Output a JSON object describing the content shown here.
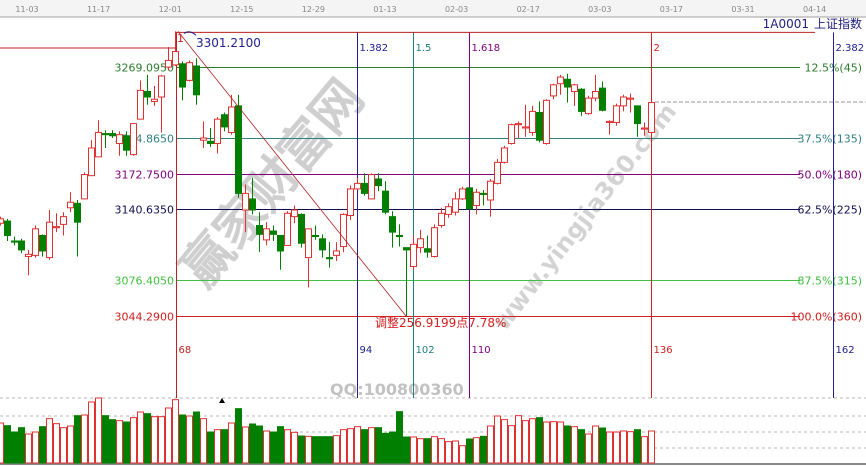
{
  "header": {
    "symbol": "1A0001",
    "index_name": "上证指数"
  },
  "watermark": {
    "site_name": "赢家财富网",
    "url": "www.yingjia360.com",
    "qq": "QQ:100800360"
  },
  "chart_data": {
    "type": "candlestick",
    "x_tick_labels": [
      "11-03",
      "11-17",
      "12-01",
      "12-15",
      "12-29",
      "01-13",
      "02-03",
      "02-17",
      "03-03",
      "03-17",
      "03-31",
      "04-14"
    ],
    "peak": {
      "label": "1",
      "value": "3301.2100"
    },
    "adjustment_note": "调整256.9199点7.78%",
    "fib_levels": [
      {
        "value": "3269.0950",
        "price": 3269.095,
        "right_label": "12.5%(45)",
        "color": "#2e7d2e"
      },
      {
        "value": "3204.8650",
        "price": 3204.865,
        "right_label": "37.5%(135)",
        "color": "#2f8080"
      },
      {
        "value": "3172.7500",
        "price": 3172.75,
        "right_label": "50.0%(180)",
        "color": "#800080"
      },
      {
        "value": "3140.6350",
        "price": 3140.635,
        "right_label": "62.5%(225)",
        "color": "#101050"
      },
      {
        "value": "3076.4050",
        "price": 3076.405,
        "right_label": "87.5%(315)",
        "color": "#40c040"
      },
      {
        "value": "3044.2900",
        "price": 3044.29,
        "right_label": "100.0%(360)",
        "color": "#d02020"
      }
    ],
    "time_zones": [
      {
        "ratio": "",
        "bar": "68",
        "bar_index": 68,
        "color": "#c02020"
      },
      {
        "ratio": "1.382",
        "bar": "94",
        "bar_index": 94,
        "color": "#202090"
      },
      {
        "ratio": "1.5",
        "bar": "102",
        "bar_index": 102,
        "color": "#208080"
      },
      {
        "ratio": "1.618",
        "bar": "110",
        "bar_index": 110,
        "color": "#800080"
      },
      {
        "ratio": "2",
        "bar": "136",
        "bar_index": 136,
        "color": "#d02020"
      },
      {
        "ratio": "2.382",
        "bar": "162",
        "bar_index": 162,
        "color": "#202090"
      }
    ],
    "last_bar_index": 136,
    "colors": {
      "up": "#e03030",
      "down": "#007f00"
    },
    "ohlc": [
      [
        3128,
        3134,
        3126,
        3132
      ],
      [
        3130,
        3132,
        3112,
        3117
      ],
      [
        3112,
        3116,
        3108,
        3111
      ],
      [
        3112,
        3114,
        3101,
        3104
      ],
      [
        3098,
        3104,
        3081,
        3100
      ],
      [
        3099,
        3126,
        3097,
        3123
      ],
      [
        3117,
        3118,
        3098,
        3103
      ],
      [
        3097,
        3140,
        3095,
        3129
      ],
      [
        3124,
        3137,
        3120,
        3125
      ],
      [
        3127,
        3138,
        3117,
        3134
      ],
      [
        3142,
        3156,
        3138,
        3147
      ],
      [
        3146,
        3149,
        3098,
        3129
      ],
      [
        3150,
        3174,
        3150,
        3172
      ],
      [
        3171,
        3203,
        3171,
        3196
      ],
      [
        3188,
        3221,
        3188,
        3210
      ],
      [
        3209,
        3212,
        3196,
        3208
      ],
      [
        3209,
        3212,
        3205,
        3207
      ],
      [
        3200,
        3211,
        3189,
        3208
      ],
      [
        3207,
        3211,
        3189,
        3194
      ],
      [
        3190,
        3218,
        3189,
        3218
      ],
      [
        3222,
        3257,
        3222,
        3248
      ],
      [
        3247,
        3262,
        3235,
        3242
      ],
      [
        3238,
        3252,
        3234,
        3240
      ],
      [
        3242,
        3262,
        3210,
        3261
      ],
      [
        3269,
        3287,
        3266,
        3275
      ],
      [
        3271,
        3301.21,
        3270,
        3283
      ],
      [
        3272,
        3274,
        3239,
        3251
      ],
      [
        3257,
        3275,
        3256,
        3273
      ],
      [
        3270,
        3277,
        3235,
        3244
      ],
      [
        3203,
        3220,
        3196,
        3205
      ],
      [
        3202,
        3214,
        3197,
        3200
      ],
      [
        3200,
        3224,
        3191,
        3222
      ],
      [
        3226,
        3228,
        3211,
        3215
      ],
      [
        3210,
        3244,
        3208,
        3233
      ],
      [
        3234,
        3244,
        3151,
        3155
      ],
      [
        3140,
        3163,
        3120,
        3155
      ],
      [
        3150,
        3169,
        3136,
        3140
      ],
      [
        3126,
        3138,
        3102,
        3118
      ],
      [
        3113,
        3129,
        3108,
        3123
      ],
      [
        3121,
        3126,
        3112,
        3118
      ],
      [
        3117,
        3117,
        3086,
        3103
      ],
      [
        3108,
        3139,
        3108,
        3137
      ],
      [
        3134,
        3144,
        3128,
        3140
      ],
      [
        3136,
        3137,
        3106,
        3110
      ],
      [
        3097,
        3123,
        3070,
        3123
      ],
      [
        3117,
        3126,
        3113,
        3116
      ],
      [
        3114,
        3118,
        3097,
        3104
      ],
      [
        3097,
        3111,
        3088,
        3096
      ],
      [
        3099,
        3111,
        3094,
        3103
      ],
      [
        3107,
        3137,
        3102,
        3136
      ],
      [
        3135,
        3162,
        3131,
        3159
      ],
      [
        3159,
        3169,
        3158,
        3164
      ],
      [
        3164,
        3173,
        3153,
        3155
      ],
      [
        3150,
        3173,
        3150,
        3172
      ],
      [
        3168,
        3173,
        3157,
        3162
      ],
      [
        3157,
        3166,
        3136,
        3138
      ],
      [
        3134,
        3139,
        3106,
        3120
      ],
      [
        3117,
        3127,
        3107,
        3116
      ],
      [
        3106,
        3106,
        3044.29,
        3104
      ],
      [
        3089,
        3117,
        3086,
        3109
      ],
      [
        3106,
        3122,
        3101,
        3114
      ],
      [
        3105,
        3117,
        3097,
        3102
      ],
      [
        3098,
        3127,
        3097,
        3124
      ],
      [
        3126,
        3142,
        3124,
        3137
      ],
      [
        3136,
        3146,
        3133,
        3143
      ],
      [
        3138,
        3156,
        3135,
        3150
      ],
      [
        3150,
        3161,
        3149,
        3159
      ],
      [
        3160,
        3160,
        3141,
        3141
      ],
      [
        3144,
        3159,
        3136,
        3156
      ],
      [
        3155,
        3158,
        3144,
        3154
      ],
      [
        3149,
        3168,
        3134,
        3166
      ],
      [
        3164,
        3186,
        3163,
        3183
      ],
      [
        3183,
        3198,
        3182,
        3196
      ],
      [
        3200,
        3218,
        3199,
        3217
      ],
      [
        3217,
        3220,
        3205,
        3218
      ],
      [
        3214,
        3235,
        3206,
        3215
      ],
      [
        3210,
        3234,
        3207,
        3229
      ],
      [
        3228,
        3238,
        3201,
        3203
      ],
      [
        3200,
        3240,
        3199,
        3239
      ],
      [
        3243,
        3254,
        3240,
        3253
      ],
      [
        3254,
        3262,
        3244,
        3260
      ],
      [
        3258,
        3263,
        3237,
        3251
      ],
      [
        3247,
        3254,
        3234,
        3253
      ],
      [
        3249,
        3250,
        3225,
        3229
      ],
      [
        3227,
        3243,
        3226,
        3241
      ],
      [
        3241,
        3262,
        3238,
        3247
      ],
      [
        3250,
        3256,
        3229,
        3230
      ],
      [
        3219,
        3221,
        3208,
        3220
      ],
      [
        3219,
        3236,
        3216,
        3234
      ],
      [
        3234,
        3244,
        3229,
        3242
      ],
      [
        3240,
        3245,
        3228,
        3241
      ],
      [
        3234,
        3234,
        3206,
        3218
      ],
      [
        3213,
        3219,
        3207,
        3214
      ],
      [
        3210,
        3238,
        3209,
        3237
      ]
    ],
    "volume": [
      120,
      112,
      93,
      106,
      87,
      93,
      109,
      133,
      118,
      106,
      111,
      142,
      144,
      183,
      195,
      142,
      130,
      127,
      123,
      136,
      153,
      148,
      139,
      139,
      165,
      190,
      144,
      141,
      153,
      133,
      93,
      100,
      100,
      120,
      163,
      108,
      117,
      111,
      96,
      93,
      109,
      100,
      92,
      81,
      80,
      79,
      79,
      79,
      82,
      100,
      103,
      109,
      100,
      106,
      106,
      89,
      93,
      154,
      78,
      78,
      73,
      73,
      79,
      73,
      64,
      66,
      52,
      72,
      76,
      80,
      111,
      141,
      130,
      112,
      142,
      127,
      133,
      136,
      123,
      124,
      123,
      111,
      109,
      100,
      87,
      111,
      105,
      93,
      93,
      96,
      94,
      100,
      79,
      96
    ],
    "last_price_line": true
  }
}
